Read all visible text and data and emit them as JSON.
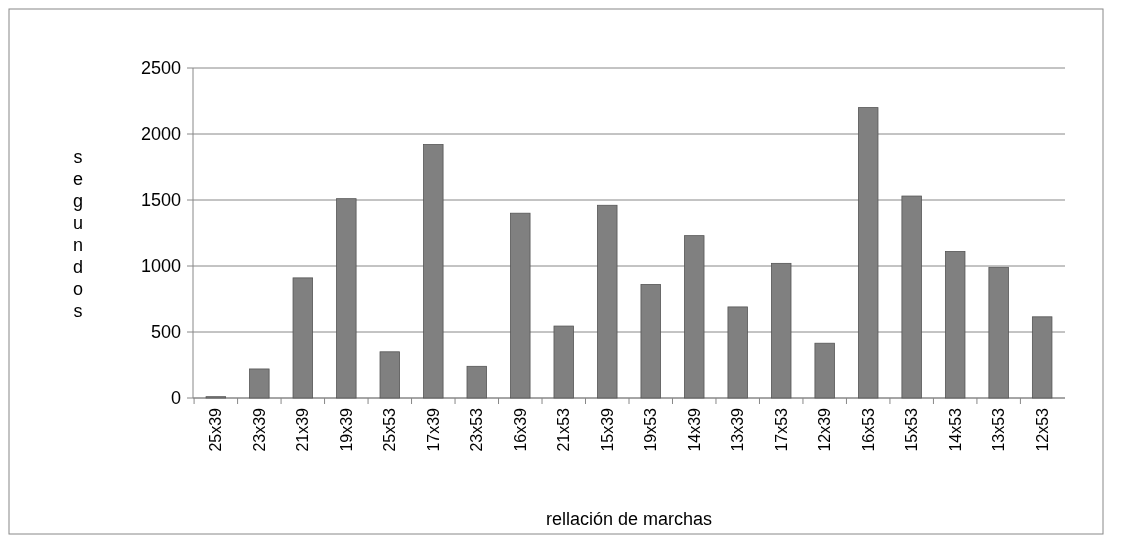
{
  "chart_data": {
    "type": "bar",
    "xlabel": "rellación de marchas",
    "ylabel": "segundos",
    "categories": [
      "25x39",
      "23x39",
      "21x39",
      "19x39",
      "25x53",
      "17x39",
      "23x53",
      "16x39",
      "21x53",
      "15x39",
      "19x53",
      "14x39",
      "13x39",
      "17x53",
      "12x39",
      "16x53",
      "15x53",
      "14x53",
      "13x53",
      "12x53"
    ],
    "values": [
      10,
      220,
      910,
      1510,
      350,
      1920,
      240,
      1400,
      545,
      1460,
      860,
      1230,
      690,
      1020,
      415,
      2200,
      1530,
      1110,
      990,
      615
    ],
    "color": "#808080",
    "ylim": [
      0,
      2500
    ],
    "yticks": [
      0,
      500,
      1000,
      1500,
      2000,
      2500
    ],
    "grid": "y"
  }
}
